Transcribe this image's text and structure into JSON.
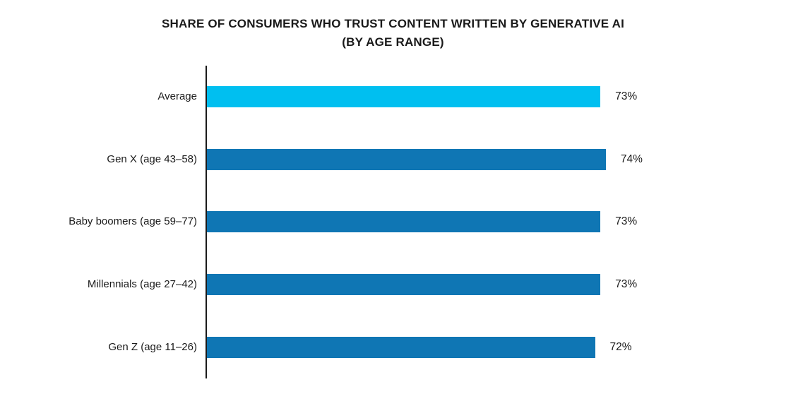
{
  "chart": {
    "title_line1": "SHARE OF CONSUMERS WHO TRUST CONTENT WRITTEN BY GENERATIVE AI",
    "title_line2": "(BY AGE RANGE)"
  },
  "chart_data": {
    "type": "bar",
    "orientation": "horizontal",
    "title": "SHARE OF CONSUMERS WHO TRUST CONTENT WRITTEN BY GENERATIVE AI (BY AGE RANGE)",
    "categories": [
      "Average",
      "Gen X (age 43–58)",
      "Baby boomers (age 59–77)",
      "Millennials (age 27–42)",
      "Gen Z (age 11–26)"
    ],
    "values": [
      73,
      74,
      73,
      73,
      72
    ],
    "value_labels": [
      "73%",
      "74%",
      "73%",
      "73%",
      "72%"
    ],
    "axis_range": [
      0,
      100
    ],
    "grid": false,
    "legend": false,
    "xlabel": "",
    "ylabel": "",
    "bar_colors": [
      "#00bff0",
      "#0f76b4",
      "#0f76b4",
      "#0f76b4",
      "#0f76b4"
    ],
    "colors": {
      "highlight_bar": "#00bff0",
      "default_bar": "#0f76b4",
      "axis": "#1a1a1a",
      "text": "#1a1a1a"
    }
  }
}
